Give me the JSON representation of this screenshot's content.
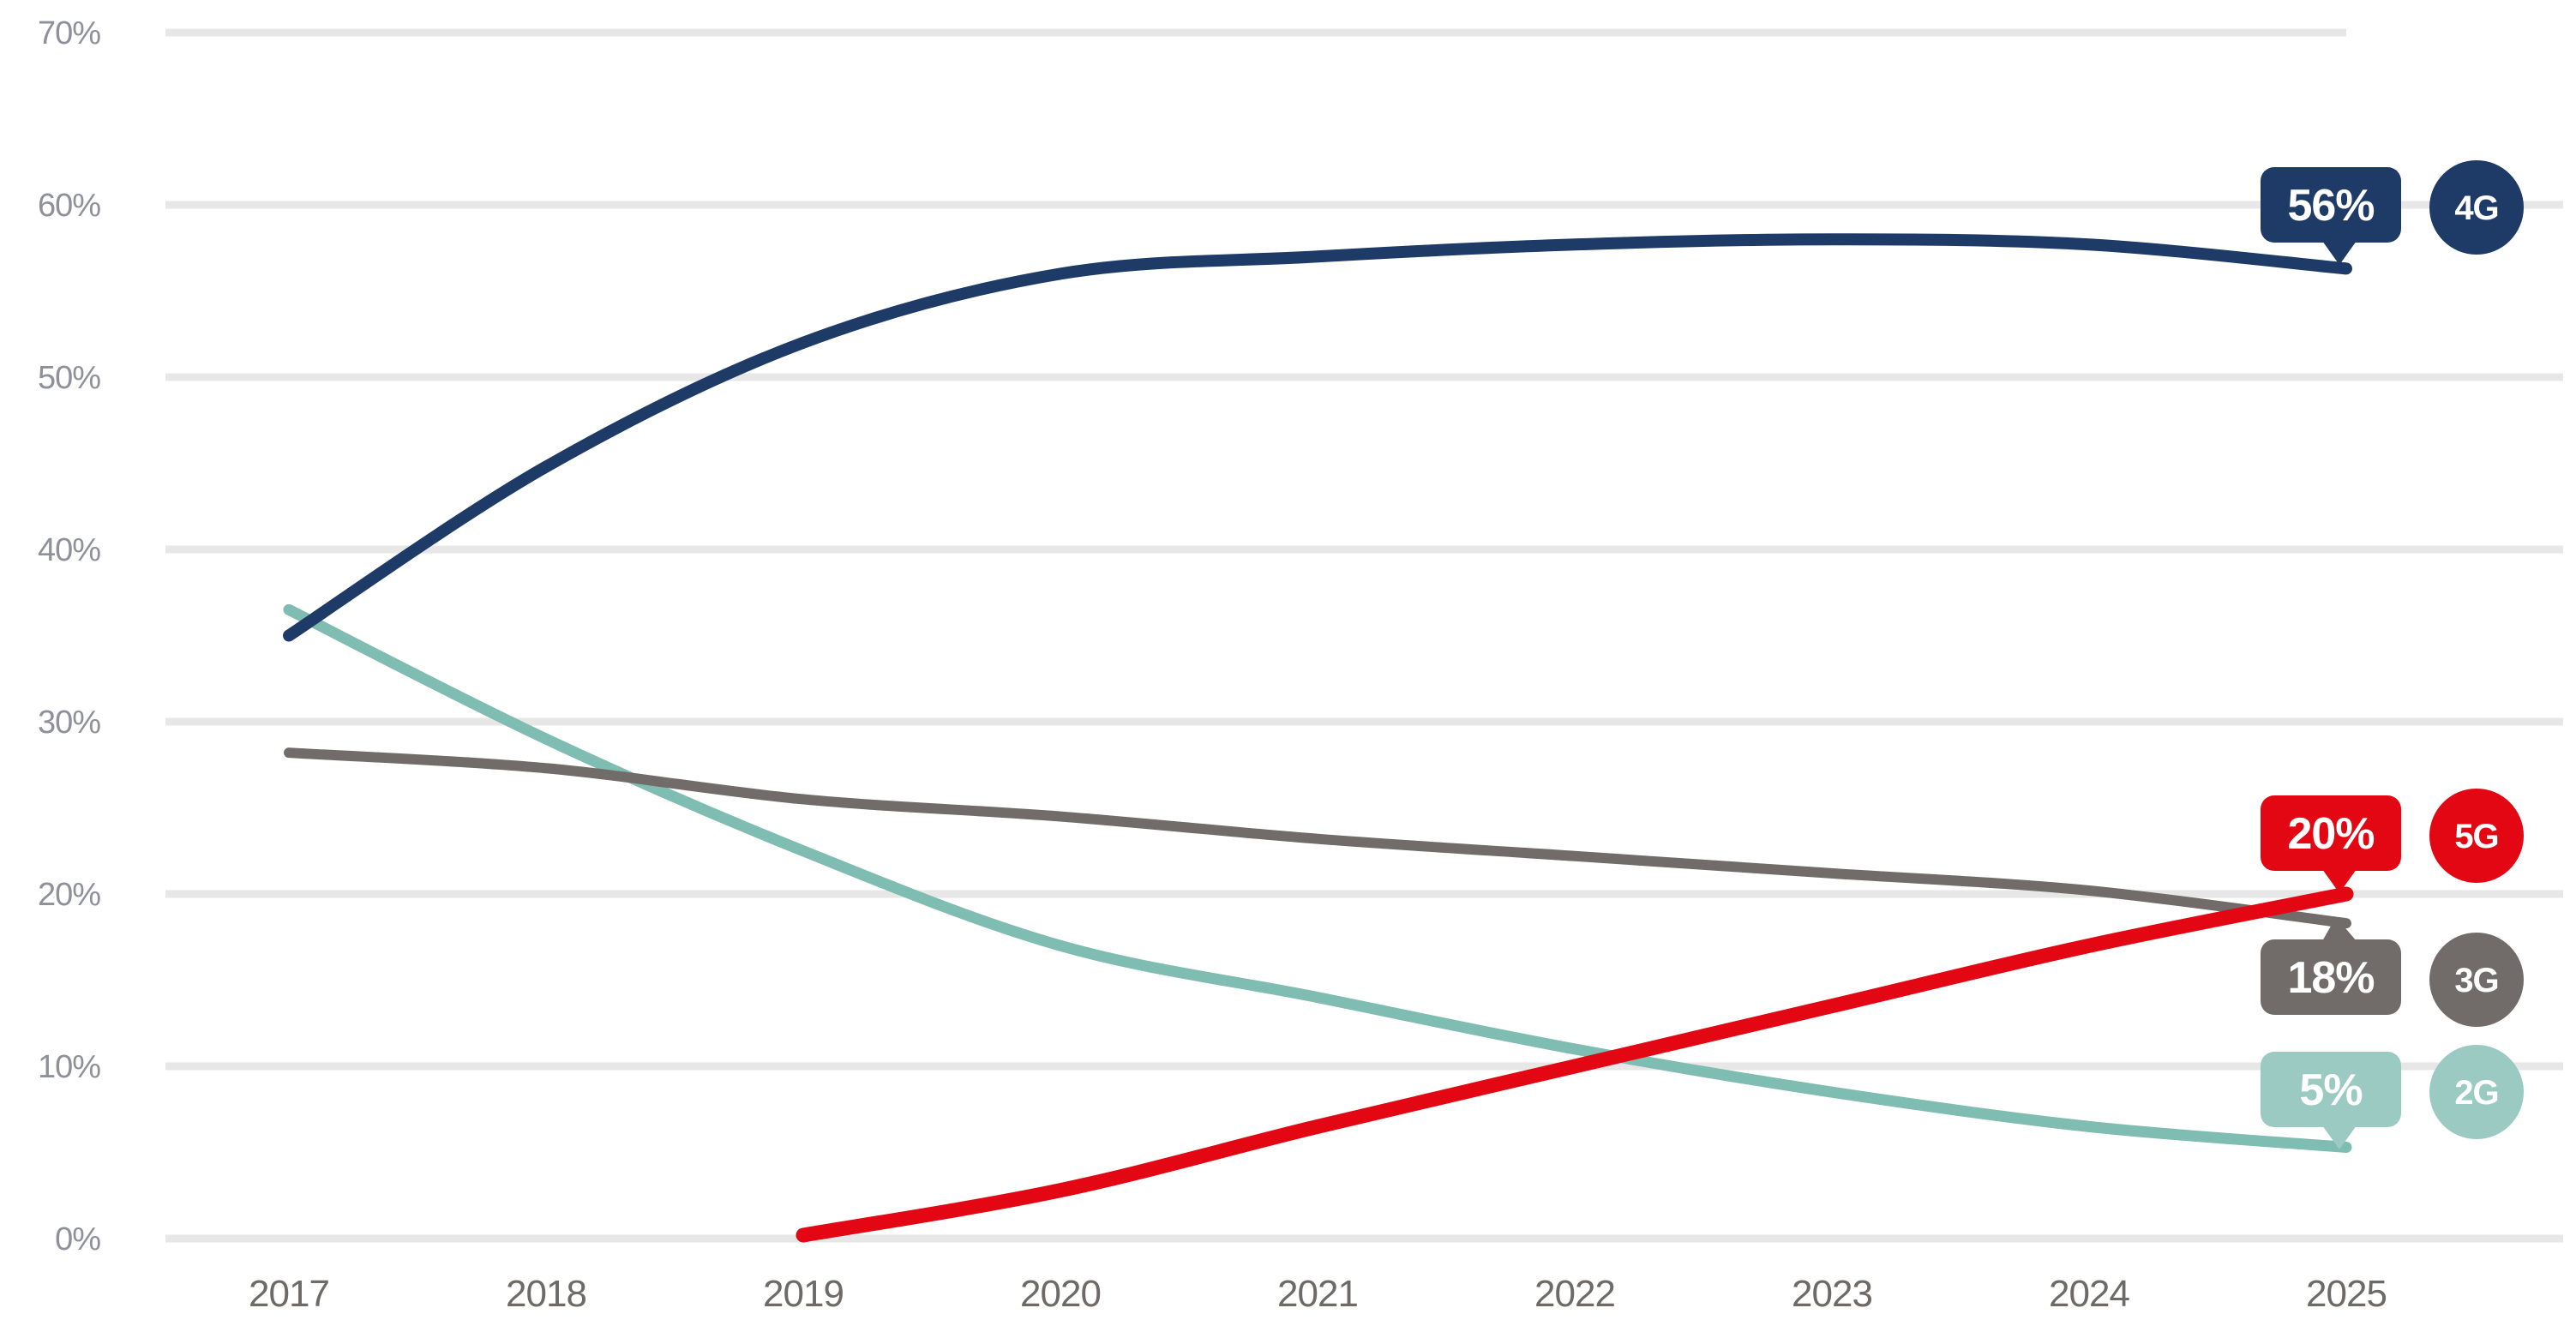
{
  "chart_data": {
    "type": "line",
    "title": "",
    "x_tick_labels": [
      "2017",
      "2018",
      "2019",
      "2020",
      "2021",
      "2022",
      "2023",
      "2024",
      "2025"
    ],
    "x_range": [
      2017,
      2025
    ],
    "y_axis": {
      "tick_labels": [
        "0%",
        "10%",
        "20%",
        "30%",
        "40%",
        "50%",
        "60%",
        "70%"
      ],
      "min": 0,
      "max": 70,
      "grid": true
    },
    "grid_color": "#e7e7e7",
    "legend_position": "right-end-callouts",
    "series": [
      {
        "name": "2G",
        "badge": "2G",
        "end_label": "5%",
        "line_color": "#7fbcb2",
        "badge_color": "#9bcac2",
        "stroke_width": 13,
        "callout_pointer": "bottom",
        "points": [
          [
            2017,
            36.5
          ],
          [
            2018,
            29.0
          ],
          [
            2019,
            22.5
          ],
          [
            2020,
            17.0
          ],
          [
            2021,
            14.0
          ],
          [
            2022,
            11.0
          ],
          [
            2023,
            8.5
          ],
          [
            2024,
            6.5
          ],
          [
            2025,
            5.3
          ]
        ]
      },
      {
        "name": "3G",
        "badge": "3G",
        "end_label": "18%",
        "line_color": "#716c6a",
        "badge_color": "#716c6a",
        "stroke_width": 12,
        "callout_pointer": "top",
        "points": [
          [
            2017,
            28.2
          ],
          [
            2018,
            27.3
          ],
          [
            2019,
            25.5
          ],
          [
            2020,
            24.5
          ],
          [
            2021,
            23.2
          ],
          [
            2022,
            22.2
          ],
          [
            2023,
            21.2
          ],
          [
            2024,
            20.2
          ],
          [
            2025,
            18.3
          ]
        ]
      },
      {
        "name": "4G",
        "badge": "4G",
        "end_label": "56%",
        "line_color": "#1e3a66",
        "badge_color": "#1e3a66",
        "stroke_width": 14,
        "callout_pointer": "bottom",
        "points": [
          [
            2017,
            35.0
          ],
          [
            2018,
            44.8
          ],
          [
            2019,
            52.0
          ],
          [
            2020,
            56.0
          ],
          [
            2021,
            57.0
          ],
          [
            2022,
            57.7
          ],
          [
            2023,
            58.0
          ],
          [
            2024,
            57.7
          ],
          [
            2025,
            56.3
          ]
        ]
      },
      {
        "name": "5G",
        "badge": "5G",
        "end_label": "20%",
        "line_color": "#e30613",
        "badge_color": "#e30613",
        "stroke_width": 17,
        "callout_pointer": "bottom",
        "points": [
          [
            2019,
            0.2
          ],
          [
            2020,
            2.8
          ],
          [
            2021,
            6.5
          ],
          [
            2022,
            10.0
          ],
          [
            2023,
            13.5
          ],
          [
            2024,
            17.0
          ],
          [
            2025,
            20.0
          ]
        ]
      }
    ],
    "callout_order_top_to_bottom": [
      "4G",
      "5G",
      "3G",
      "2G"
    ],
    "callout_text_color": "#ffffff"
  }
}
